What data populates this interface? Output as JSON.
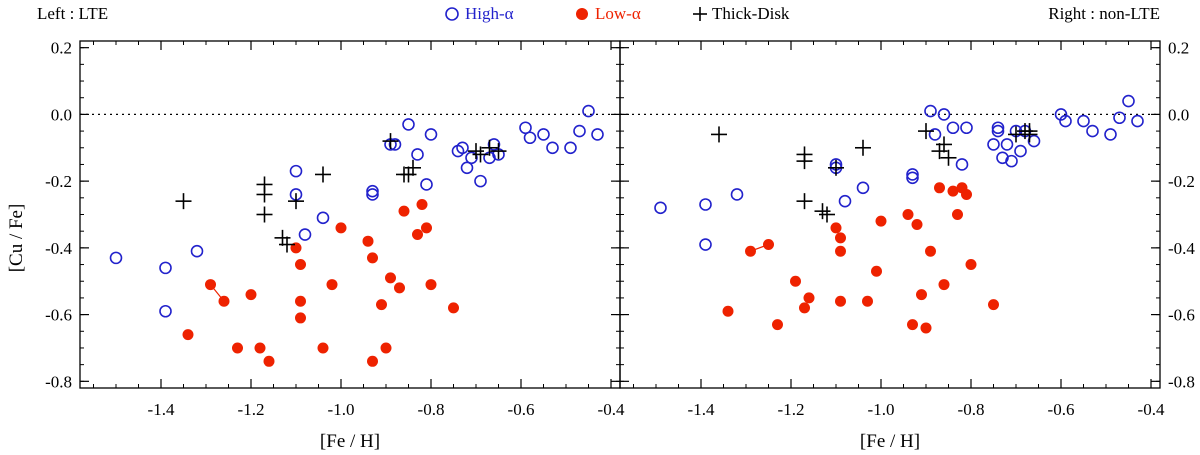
{
  "chart_data": {
    "type": "scatter",
    "layout": "two panels side by side with shared y axis",
    "header": {
      "left_label": "Left : LTE",
      "right_label": "Right : non-LTE"
    },
    "legend": [
      {
        "marker": "open-circle",
        "label": "High-α",
        "color": "#2222cc"
      },
      {
        "marker": "filled-circle",
        "label": "Low-α",
        "color": "#ee2200"
      },
      {
        "marker": "plus",
        "label": "Thick-Disk",
        "color": "#000000"
      }
    ],
    "xlabel": "[Fe / H]",
    "ylabel": "[Cu / Fe]",
    "xlim": [
      -1.58,
      -0.38
    ],
    "ylim": [
      -0.82,
      0.22
    ],
    "xticks": [
      -1.4,
      -1.2,
      -1.0,
      -0.8,
      -0.6,
      -0.4
    ],
    "xtick_labels": [
      "-1.4",
      "-1.2",
      "-1.0",
      "-0.8",
      "-0.6",
      "-0.4"
    ],
    "yticks": [
      0.2,
      0.0,
      -0.2,
      -0.4,
      -0.6,
      -0.8
    ],
    "ytick_labels": [
      "0.2",
      "0.0",
      "-0.2",
      "-0.4",
      "-0.6",
      "-0.8"
    ],
    "reference_line": {
      "y": 0.0,
      "style": "dotted"
    },
    "panels": [
      {
        "name": "LTE",
        "series": [
          {
            "name": "High-α",
            "points": [
              [
                -1.5,
                -0.43
              ],
              [
                -1.39,
                -0.46
              ],
              [
                -1.39,
                -0.59
              ],
              [
                -1.32,
                -0.41
              ],
              [
                -1.1,
                -0.17
              ],
              [
                -1.1,
                -0.24
              ],
              [
                -1.08,
                -0.36
              ],
              [
                -1.04,
                -0.31
              ],
              [
                -0.93,
                -0.23
              ],
              [
                -0.93,
                -0.24
              ],
              [
                -0.89,
                -0.09
              ],
              [
                -0.88,
                -0.09
              ],
              [
                -0.85,
                -0.03
              ],
              [
                -0.83,
                -0.12
              ],
              [
                -0.81,
                -0.21
              ],
              [
                -0.8,
                -0.06
              ],
              [
                -0.74,
                -0.11
              ],
              [
                -0.73,
                -0.1
              ],
              [
                -0.72,
                -0.16
              ],
              [
                -0.71,
                -0.13
              ],
              [
                -0.69,
                -0.2
              ],
              [
                -0.67,
                -0.13
              ],
              [
                -0.66,
                -0.09
              ],
              [
                -0.65,
                -0.12
              ],
              [
                -0.59,
                -0.04
              ],
              [
                -0.58,
                -0.07
              ],
              [
                -0.55,
                -0.06
              ],
              [
                -0.53,
                -0.1
              ],
              [
                -0.49,
                -0.1
              ],
              [
                -0.47,
                -0.05
              ],
              [
                -0.45,
                0.01
              ],
              [
                -0.43,
                -0.06
              ]
            ]
          },
          {
            "name": "Low-α",
            "points": [
              [
                -1.34,
                -0.66
              ],
              [
                -1.29,
                -0.51
              ],
              [
                -1.26,
                -0.56
              ],
              [
                -1.23,
                -0.7
              ],
              [
                -1.2,
                -0.54
              ],
              [
                -1.18,
                -0.7
              ],
              [
                -1.16,
                -0.74
              ],
              [
                -1.1,
                -0.4
              ],
              [
                -1.09,
                -0.45
              ],
              [
                -1.09,
                -0.56
              ],
              [
                -1.09,
                -0.61
              ],
              [
                -1.04,
                -0.7
              ],
              [
                -1.02,
                -0.51
              ],
              [
                -1.0,
                -0.34
              ],
              [
                -0.94,
                -0.38
              ],
              [
                -0.93,
                -0.43
              ],
              [
                -0.93,
                -0.74
              ],
              [
                -0.91,
                -0.57
              ],
              [
                -0.9,
                -0.7
              ],
              [
                -0.89,
                -0.49
              ],
              [
                -0.87,
                -0.52
              ],
              [
                -0.86,
                -0.29
              ],
              [
                -0.83,
                -0.36
              ],
              [
                -0.82,
                -0.27
              ],
              [
                -0.81,
                -0.34
              ],
              [
                -0.8,
                -0.51
              ],
              [
                -0.75,
                -0.58
              ]
            ]
          },
          {
            "name": "Thick-Disk",
            "points": [
              [
                -1.35,
                -0.26
              ],
              [
                -1.17,
                -0.21
              ],
              [
                -1.17,
                -0.24
              ],
              [
                -1.17,
                -0.3
              ],
              [
                -1.13,
                -0.37
              ],
              [
                -1.12,
                -0.39
              ],
              [
                -1.1,
                -0.26
              ],
              [
                -1.04,
                -0.18
              ],
              [
                -0.89,
                -0.08
              ],
              [
                -0.86,
                -0.18
              ],
              [
                -0.85,
                -0.18
              ],
              [
                -0.84,
                -0.16
              ],
              [
                -0.7,
                -0.11
              ],
              [
                -0.69,
                -0.12
              ],
              [
                -0.67,
                -0.1
              ],
              [
                -0.65,
                -0.11
              ]
            ]
          }
        ],
        "connectors": [
          {
            "series": "Low-α",
            "from": [
              -1.29,
              -0.51
            ],
            "to": [
              -1.26,
              -0.56
            ]
          }
        ]
      },
      {
        "name": "non-LTE",
        "series": [
          {
            "name": "High-α",
            "points": [
              [
                -1.49,
                -0.28
              ],
              [
                -1.39,
                -0.27
              ],
              [
                -1.39,
                -0.39
              ],
              [
                -1.32,
                -0.24
              ],
              [
                -1.1,
                -0.15
              ],
              [
                -1.1,
                -0.16
              ],
              [
                -1.08,
                -0.26
              ],
              [
                -1.04,
                -0.22
              ],
              [
                -0.93,
                -0.18
              ],
              [
                -0.93,
                -0.19
              ],
              [
                -0.89,
                0.01
              ],
              [
                -0.88,
                -0.06
              ],
              [
                -0.86,
                0.0
              ],
              [
                -0.84,
                -0.04
              ],
              [
                -0.82,
                -0.15
              ],
              [
                -0.81,
                -0.04
              ],
              [
                -0.75,
                -0.09
              ],
              [
                -0.74,
                -0.05
              ],
              [
                -0.74,
                -0.04
              ],
              [
                -0.73,
                -0.13
              ],
              [
                -0.72,
                -0.09
              ],
              [
                -0.71,
                -0.14
              ],
              [
                -0.7,
                -0.05
              ],
              [
                -0.69,
                -0.11
              ],
              [
                -0.68,
                -0.05
              ],
              [
                -0.66,
                -0.08
              ],
              [
                -0.6,
                0.0
              ],
              [
                -0.59,
                -0.02
              ],
              [
                -0.55,
                -0.02
              ],
              [
                -0.53,
                -0.05
              ],
              [
                -0.49,
                -0.06
              ],
              [
                -0.47,
                -0.01
              ],
              [
                -0.45,
                0.04
              ],
              [
                -0.43,
                -0.02
              ]
            ]
          },
          {
            "name": "Low-α",
            "points": [
              [
                -1.34,
                -0.59
              ],
              [
                -1.29,
                -0.41
              ],
              [
                -1.25,
                -0.39
              ],
              [
                -1.23,
                -0.63
              ],
              [
                -1.19,
                -0.5
              ],
              [
                -1.17,
                -0.58
              ],
              [
                -1.16,
                -0.55
              ],
              [
                -1.1,
                -0.34
              ],
              [
                -1.09,
                -0.37
              ],
              [
                -1.09,
                -0.41
              ],
              [
                -1.09,
                -0.56
              ],
              [
                -1.03,
                -0.56
              ],
              [
                -1.01,
                -0.47
              ],
              [
                -1.0,
                -0.32
              ],
              [
                -0.94,
                -0.3
              ],
              [
                -0.93,
                -0.63
              ],
              [
                -0.92,
                -0.33
              ],
              [
                -0.91,
                -0.54
              ],
              [
                -0.9,
                -0.64
              ],
              [
                -0.89,
                -0.41
              ],
              [
                -0.87,
                -0.22
              ],
              [
                -0.86,
                -0.51
              ],
              [
                -0.84,
                -0.23
              ],
              [
                -0.83,
                -0.3
              ],
              [
                -0.82,
                -0.22
              ],
              [
                -0.81,
                -0.24
              ],
              [
                -0.8,
                -0.45
              ],
              [
                -0.75,
                -0.57
              ]
            ]
          },
          {
            "name": "Thick-Disk",
            "points": [
              [
                -1.36,
                -0.06
              ],
              [
                -1.17,
                -0.12
              ],
              [
                -1.17,
                -0.14
              ],
              [
                -1.17,
                -0.26
              ],
              [
                -1.13,
                -0.29
              ],
              [
                -1.12,
                -0.3
              ],
              [
                -1.1,
                -0.16
              ],
              [
                -1.04,
                -0.1
              ],
              [
                -0.9,
                -0.05
              ],
              [
                -0.87,
                -0.11
              ],
              [
                -0.86,
                -0.09
              ],
              [
                -0.85,
                -0.13
              ],
              [
                -0.7,
                -0.06
              ],
              [
                -0.68,
                -0.05
              ],
              [
                -0.67,
                -0.06
              ],
              [
                -0.67,
                -0.05
              ]
            ]
          }
        ],
        "connectors": [
          {
            "series": "Low-α",
            "from": [
              -1.29,
              -0.41
            ],
            "to": [
              -1.25,
              -0.39
            ]
          }
        ]
      }
    ]
  }
}
